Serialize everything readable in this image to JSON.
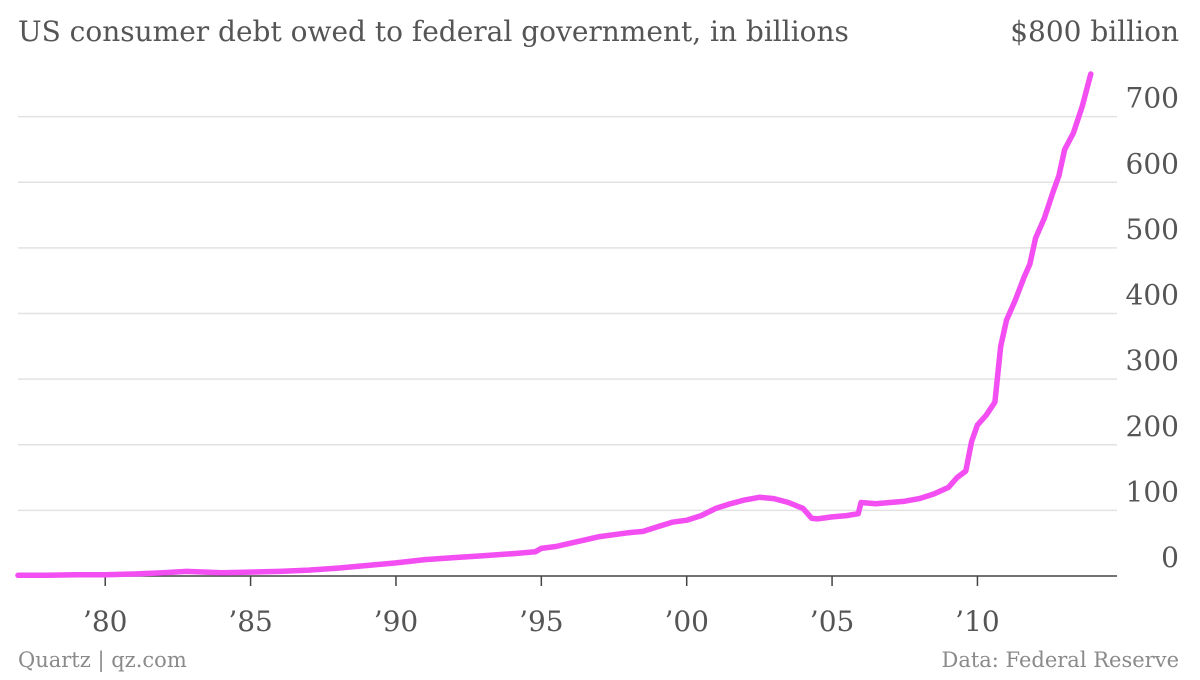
{
  "chart_data": {
    "type": "line",
    "title": "US consumer debt owed to federal government, in billions",
    "y_top_label": "$800 billion",
    "xlabel": "",
    "ylabel": "",
    "xlim": [
      1977.0,
      2014.8
    ],
    "ylim": [
      0,
      800
    ],
    "x_ticks": [
      {
        "value": 1980,
        "label": "’80"
      },
      {
        "value": 1985,
        "label": "’85"
      },
      {
        "value": 1990,
        "label": "’90"
      },
      {
        "value": 1995,
        "label": "’95"
      },
      {
        "value": 2000,
        "label": "’00"
      },
      {
        "value": 2005,
        "label": "’05"
      },
      {
        "value": 2010,
        "label": "’10"
      }
    ],
    "y_ticks": [
      {
        "value": 0,
        "label": "0"
      },
      {
        "value": 100,
        "label": "100"
      },
      {
        "value": 200,
        "label": "200"
      },
      {
        "value": 300,
        "label": "300"
      },
      {
        "value": 400,
        "label": "400"
      },
      {
        "value": 500,
        "label": "500"
      },
      {
        "value": 600,
        "label": "600"
      },
      {
        "value": 700,
        "label": "700"
      }
    ],
    "grid": true,
    "legend": "none",
    "series_color": "#f24ef2",
    "series": [
      {
        "x": [
          1977.0,
          1978.0,
          1979.0,
          1980.0,
          1981.0,
          1982.0,
          1982.8,
          1984.0,
          1985.0,
          1986.0,
          1987.0,
          1988.0,
          1989.0,
          1990.0,
          1991.0,
          1992.0,
          1993.0,
          1994.0,
          1994.8,
          1995.0,
          1995.5,
          1996.0,
          1996.5,
          1997.0,
          1997.5,
          1998.0,
          1998.5,
          1999.0,
          1999.5,
          2000.0,
          2000.5,
          2001.0,
          2001.5,
          2002.0,
          2002.5,
          2003.0,
          2003.5,
          2004.0,
          2004.3,
          2004.5,
          2005.0,
          2005.5,
          2005.9,
          2006.0,
          2006.5,
          2007.0,
          2007.5,
          2008.0,
          2008.5,
          2009.0,
          2009.3,
          2009.6,
          2009.8,
          2010.0,
          2010.3,
          2010.6,
          2010.8,
          2011.0,
          2011.3,
          2011.6,
          2011.8,
          2012.0,
          2012.3,
          2012.6,
          2012.8,
          2013.0,
          2013.3,
          2013.6,
          2013.9
        ],
        "values": [
          1,
          1,
          2,
          2,
          3,
          5,
          7,
          5,
          6,
          7,
          9,
          12,
          16,
          20,
          25,
          28,
          31,
          34,
          37,
          42,
          45,
          50,
          55,
          60,
          63,
          66,
          68,
          75,
          82,
          85,
          92,
          103,
          110,
          116,
          120,
          118,
          112,
          103,
          88,
          87,
          90,
          92,
          95,
          112,
          110,
          112,
          114,
          118,
          125,
          135,
          150,
          160,
          205,
          230,
          245,
          265,
          350,
          390,
          420,
          455,
          475,
          515,
          545,
          585,
          610,
          650,
          675,
          715,
          765
        ]
      }
    ],
    "footer_left": "Quartz | qz.com",
    "footer_right": "Data: Federal Reserve"
  }
}
